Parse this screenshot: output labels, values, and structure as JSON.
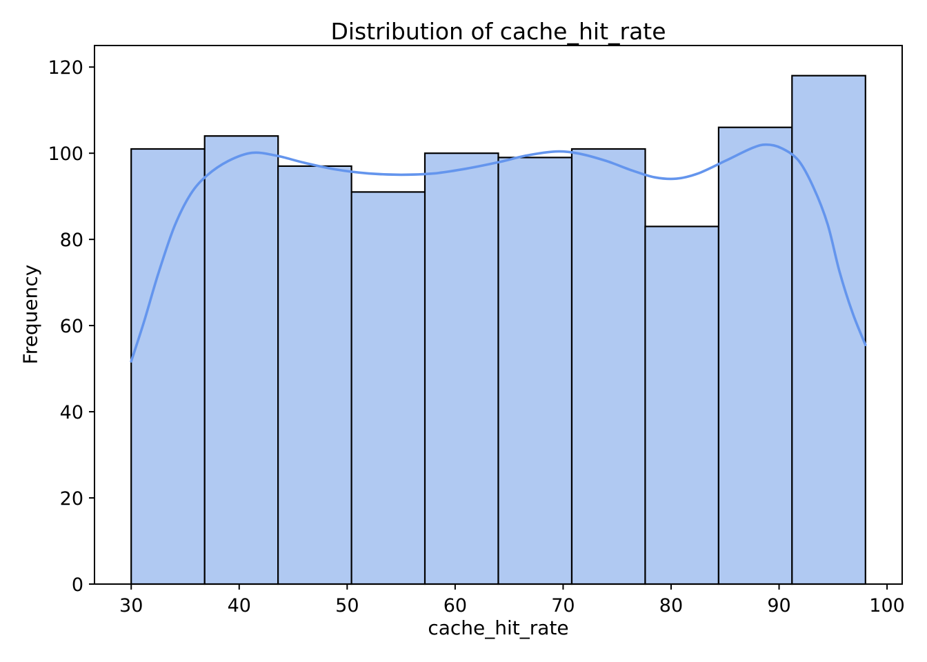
{
  "chart_data": {
    "type": "histogram",
    "title": "Distribution of cache_hit_rate",
    "xlabel": "cache_hit_rate",
    "ylabel": "Frequency",
    "bin_edges": [
      30.0,
      36.8,
      43.6,
      50.4,
      57.2,
      64.0,
      70.8,
      77.6,
      84.4,
      91.2,
      98.0
    ],
    "counts": [
      101,
      104,
      97,
      91,
      100,
      99,
      101,
      83,
      106,
      118
    ],
    "x_ticks": [
      30,
      40,
      50,
      60,
      70,
      80,
      90,
      100
    ],
    "y_ticks": [
      0,
      20,
      40,
      60,
      80,
      100,
      120
    ],
    "xlim": [
      26.6,
      101.4
    ],
    "ylim": [
      0,
      125
    ],
    "grid": false,
    "legend": null,
    "kde_points": [
      [
        30.0,
        51.7
      ],
      [
        31.2,
        61.0
      ],
      [
        32.5,
        72.0
      ],
      [
        34.0,
        83.0
      ],
      [
        35.5,
        90.5
      ],
      [
        37.0,
        94.8
      ],
      [
        39.0,
        98.2
      ],
      [
        41.2,
        100.1
      ],
      [
        43.5,
        99.4
      ],
      [
        46.0,
        97.8
      ],
      [
        49.0,
        96.2
      ],
      [
        52.0,
        95.3
      ],
      [
        55.0,
        95.0
      ],
      [
        58.0,
        95.3
      ],
      [
        61.0,
        96.4
      ],
      [
        64.0,
        97.9
      ],
      [
        66.5,
        99.4
      ],
      [
        69.3,
        100.4
      ],
      [
        71.5,
        99.9
      ],
      [
        74.0,
        98.2
      ],
      [
        76.5,
        95.9
      ],
      [
        78.5,
        94.4
      ],
      [
        80.5,
        94.1
      ],
      [
        82.5,
        95.3
      ],
      [
        85.0,
        98.2
      ],
      [
        87.5,
        101.2
      ],
      [
        88.8,
        102.0
      ],
      [
        90.2,
        101.2
      ],
      [
        91.8,
        98.3
      ],
      [
        93.2,
        92.0
      ],
      [
        94.5,
        83.5
      ],
      [
        95.6,
        72.5
      ],
      [
        96.8,
        63.0
      ],
      [
        98.0,
        55.5
      ]
    ],
    "colors": {
      "bar_fill": "#b0c9f2",
      "bar_edge": "#000000",
      "kde_line": "#6495ed",
      "axis": "#000000",
      "text": "#000000",
      "background": "#ffffff"
    }
  }
}
